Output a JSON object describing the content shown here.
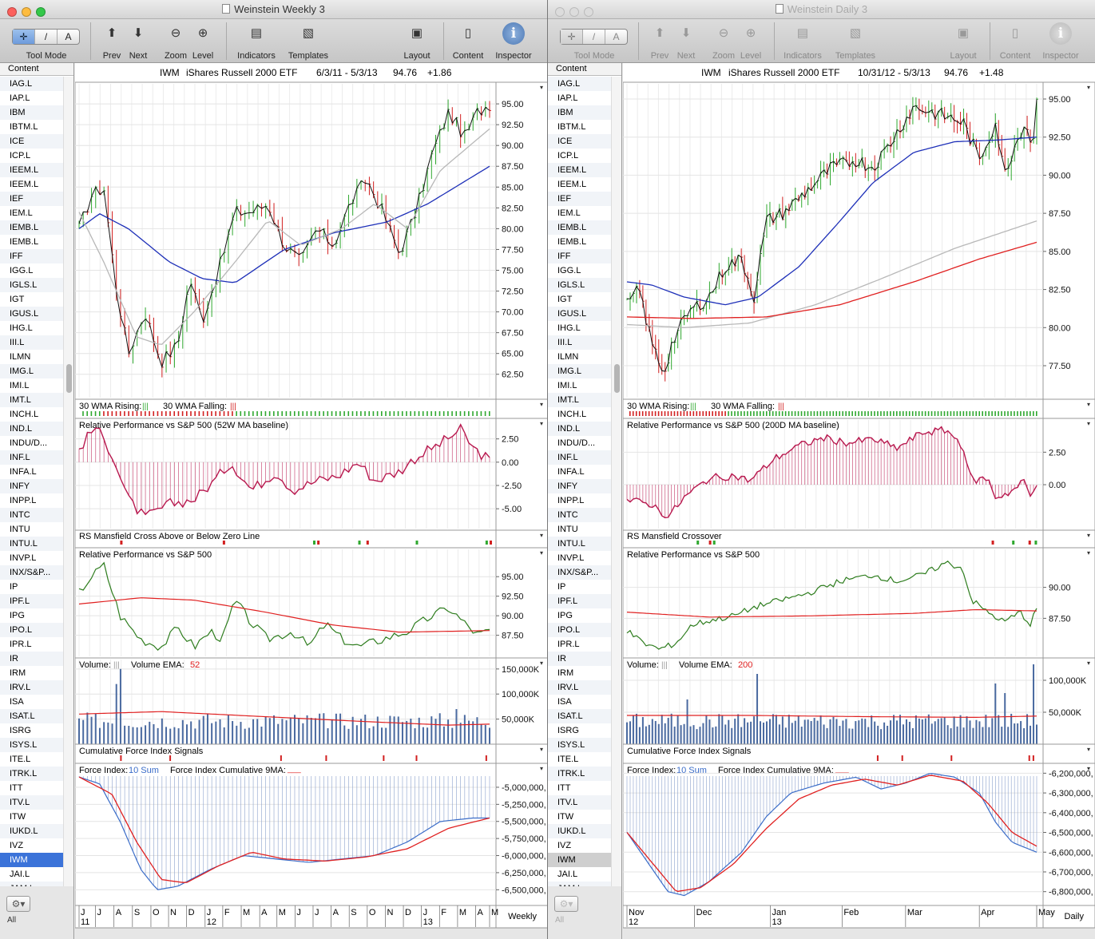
{
  "toolbar": {
    "tool_mode": "Tool Mode",
    "prev": "Prev",
    "next": "Next",
    "zoom": "Zoom",
    "level": "Level",
    "indicators": "Indicators",
    "templates": "Templates",
    "layout": "Layout",
    "content": "Content",
    "inspector": "Inspector",
    "tool_arrow": "✛",
    "tool_line": "/",
    "tool_text": "A"
  },
  "sidebar": {
    "header": "Content",
    "all": "All",
    "selected": "IWM",
    "items": [
      "IAG.L",
      "IAP.L",
      "IBM",
      "IBTM.L",
      "ICE",
      "ICP.L",
      "IEEM.L",
      "IEEM.L",
      "IEF",
      "IEM.L",
      "IEMB.L",
      "IEMB.L",
      "IFF",
      "IGG.L",
      "IGLS.L",
      "IGT",
      "IGUS.L",
      "IHG.L",
      "III.L",
      "ILMN",
      "IMG.L",
      "IMI.L",
      "IMT.L",
      "INCH.L",
      "IND.L",
      "INDU/D...",
      "INF.L",
      "INFA.L",
      "INFY",
      "INPP.L",
      "INTC",
      "INTU",
      "INTU.L",
      "INVP.L",
      "INX/S&P...",
      "IP",
      "IPF.L",
      "IPG",
      "IPO.L",
      "IPR.L",
      "IR",
      "IRM",
      "IRV.L",
      "ISA",
      "ISAT.L",
      "ISRG",
      "ISYS.L",
      "ITE.L",
      "ITRK.L",
      "ITT",
      "ITV.L",
      "ITW",
      "IUKD.L",
      "IVZ",
      "IWM",
      "JAI.L",
      "JAM.L"
    ]
  },
  "windows": [
    {
      "title": "Weinstein Weekly 3",
      "active": true,
      "header": {
        "symbol": "IWM",
        "name": "iShares Russell 2000 ETF",
        "range": "6/3/11 - 5/3/13",
        "last": "94.76",
        "change": "+1.86"
      },
      "price_ticks": [
        "95.00",
        "92.50",
        "90.00",
        "87.50",
        "85.00",
        "82.50",
        "80.00",
        "77.50",
        "75.00",
        "72.50",
        "70.00",
        "67.50",
        "65.00",
        "62.50"
      ],
      "p30": {
        "label_rising": "30 WMA Rising:",
        "rising_glyph": "|||",
        "label_falling": "30 WMA Falling:",
        "falling_glyph": "|||"
      },
      "p_rel1": {
        "title": "Relative Performance vs S&P 500 (52W MA baseline)",
        "ticks": [
          "2.50",
          "0.00",
          "-2.50",
          "-5.00"
        ]
      },
      "p_rs": {
        "title": "RS Mansfield Cross Above or Below Zero Line"
      },
      "p_rel2": {
        "title": "Relative Performance vs S&P 500",
        "ticks": [
          "95.00",
          "92.50",
          "90.00",
          "87.50"
        ]
      },
      "p_vol": {
        "title": "Volume:",
        "glyph": "|||",
        "ema_label": "Volume EMA:",
        "ema_value": "52",
        "ticks": [
          "150,000K",
          "100,000K",
          "50,000K"
        ]
      },
      "p_cfi": {
        "title": "Cumulative Force Index Signals"
      },
      "p_fi": {
        "title": "Force Index:",
        "sum": "10 Sum",
        "cum_label": "Force Index Cumulative 9MA:",
        "cum_glyph": "___",
        "ticks": [
          "-5,000,000,",
          "-5,250,000,",
          "-5,500,000,",
          "-5,750,000,",
          "-6,000,000,",
          "-6,250,000,",
          "-6,500,000,"
        ]
      },
      "xaxis": {
        "months": [
          "J",
          "J",
          "A",
          "S",
          "O",
          "N",
          "D",
          "J",
          "F",
          "M",
          "A",
          "M",
          "J",
          "J",
          "A",
          "S",
          "O",
          "N",
          "D",
          "J",
          "F",
          "M",
          "A",
          "M"
        ],
        "years": [
          "11",
          "12",
          "13"
        ],
        "period": "Weekly"
      }
    },
    {
      "title": "Weinstein Daily 3",
      "active": false,
      "header": {
        "symbol": "IWM",
        "name": "iShares Russell 2000 ETF",
        "range": "10/31/12 - 5/3/13",
        "last": "94.76",
        "change": "+1.48"
      },
      "price_ticks": [
        "95.00",
        "92.50",
        "90.00",
        "87.50",
        "85.00",
        "82.50",
        "80.00",
        "77.50"
      ],
      "p30": {
        "label_rising": "30 WMA Rising:",
        "rising_glyph": "|||",
        "label_falling": "30 WMA Falling:",
        "falling_glyph": "|||"
      },
      "p_rel1": {
        "title": "Relative Performance vs S&P 500 (200D MA baseline)",
        "ticks": [
          "2.50",
          "0.00"
        ]
      },
      "p_rs": {
        "title": "RS Mansfield Crossover"
      },
      "p_rel2": {
        "title": "Relative Performance vs S&P 500",
        "ticks": [
          "90.00",
          "87.50"
        ]
      },
      "p_vol": {
        "title": "Volume:",
        "glyph": "|||",
        "ema_label": "Volume EMA:",
        "ema_value": "200",
        "ticks": [
          "100,000K",
          "50,000K"
        ]
      },
      "p_cfi": {
        "title": "Cumulative Force Index Signals"
      },
      "p_fi": {
        "title": "Force Index:",
        "sum": "10 Sum",
        "cum_label": "Force Index Cumulative 9MA:",
        "cum_glyph": "___",
        "ticks": [
          "-6,200,000,",
          "-6,300,000,",
          "-6,400,000,",
          "-6,500,000,",
          "-6,600,000,",
          "-6,700,000,",
          "-6,800,000,"
        ]
      },
      "xaxis": {
        "months": [
          "Nov",
          "Dec",
          "Jan",
          "Feb",
          "Mar",
          "Apr",
          "May"
        ],
        "years": [
          "12",
          "13"
        ],
        "period": "Daily"
      }
    }
  ],
  "colors": {
    "up": "#2fa82f",
    "down": "#d22020",
    "ma_blue": "#1d2fb8",
    "ma_gray": "#b8b8b8",
    "ma_red": "#e02020",
    "rel": "#b8184e",
    "rel_green": "#2e7d1e",
    "vol": "#4a6aa0",
    "fi_blue": "#3a6cc8",
    "sel_blue": "#3b73d9"
  }
}
